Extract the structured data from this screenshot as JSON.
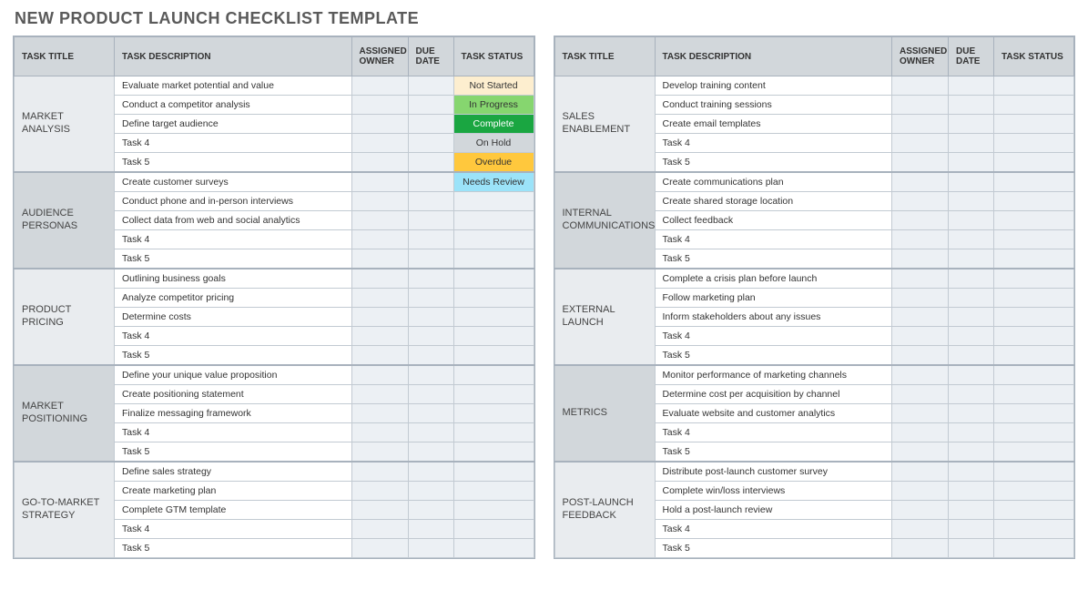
{
  "title": "NEW PRODUCT LAUNCH CHECKLIST TEMPLATE",
  "headers": {
    "task_title": "TASK TITLE",
    "task_description": "TASK DESCRIPTION",
    "assigned_owner": "ASSIGNED OWNER",
    "due_date": "DUE DATE",
    "task_status": "TASK STATUS"
  },
  "status_colors": {
    "Not Started": {
      "bg": "#fdeecf",
      "fg": "#333333"
    },
    "In Progress": {
      "bg": "#86d66f",
      "fg": "#333333"
    },
    "Complete": {
      "bg": "#1aa641",
      "fg": "#ffffff"
    },
    "On Hold": {
      "bg": "#d2d7db",
      "fg": "#333333"
    },
    "Overdue": {
      "bg": "#ffc83d",
      "fg": "#333333"
    },
    "Needs Review": {
      "bg": "#9be3f9",
      "fg": "#333333"
    }
  },
  "left": [
    {
      "category": "MARKET ANALYSIS",
      "rows": [
        {
          "desc": "Evaluate market potential and value",
          "owner": "",
          "due": "",
          "status": "Not Started"
        },
        {
          "desc": "Conduct a competitor analysis",
          "owner": "",
          "due": "",
          "status": "In Progress"
        },
        {
          "desc": "Define target audience",
          "owner": "",
          "due": "",
          "status": "Complete"
        },
        {
          "desc": "Task 4",
          "owner": "",
          "due": "",
          "status": "On Hold"
        },
        {
          "desc": "Task 5",
          "owner": "",
          "due": "",
          "status": "Overdue"
        }
      ]
    },
    {
      "category": "AUDIENCE PERSONAS",
      "rows": [
        {
          "desc": "Create customer surveys",
          "owner": "",
          "due": "",
          "status": "Needs Review"
        },
        {
          "desc": "Conduct phone and in-person interviews",
          "owner": "",
          "due": "",
          "status": ""
        },
        {
          "desc": "Collect data from web and social analytics",
          "owner": "",
          "due": "",
          "status": ""
        },
        {
          "desc": "Task 4",
          "owner": "",
          "due": "",
          "status": ""
        },
        {
          "desc": "Task 5",
          "owner": "",
          "due": "",
          "status": ""
        }
      ]
    },
    {
      "category": "PRODUCT PRICING",
      "rows": [
        {
          "desc": "Outlining business goals",
          "owner": "",
          "due": "",
          "status": ""
        },
        {
          "desc": "Analyze competitor pricing",
          "owner": "",
          "due": "",
          "status": ""
        },
        {
          "desc": "Determine costs",
          "owner": "",
          "due": "",
          "status": ""
        },
        {
          "desc": "Task 4",
          "owner": "",
          "due": "",
          "status": ""
        },
        {
          "desc": "Task 5",
          "owner": "",
          "due": "",
          "status": ""
        }
      ]
    },
    {
      "category": "MARKET POSITIONING",
      "rows": [
        {
          "desc": "Define your unique value proposition",
          "owner": "",
          "due": "",
          "status": ""
        },
        {
          "desc": "Create positioning statement",
          "owner": "",
          "due": "",
          "status": ""
        },
        {
          "desc": "Finalize messaging framework",
          "owner": "",
          "due": "",
          "status": ""
        },
        {
          "desc": "Task 4",
          "owner": "",
          "due": "",
          "status": ""
        },
        {
          "desc": "Task 5",
          "owner": "",
          "due": "",
          "status": ""
        }
      ]
    },
    {
      "category": "GO-TO-MARKET STRATEGY",
      "rows": [
        {
          "desc": "Define sales strategy",
          "owner": "",
          "due": "",
          "status": ""
        },
        {
          "desc": "Create marketing plan",
          "owner": "",
          "due": "",
          "status": ""
        },
        {
          "desc": "Complete GTM template",
          "owner": "",
          "due": "",
          "status": ""
        },
        {
          "desc": "Task 4",
          "owner": "",
          "due": "",
          "status": ""
        },
        {
          "desc": "Task 5",
          "owner": "",
          "due": "",
          "status": ""
        }
      ]
    }
  ],
  "right": [
    {
      "category": "SALES ENABLEMENT",
      "rows": [
        {
          "desc": "Develop training content",
          "owner": "",
          "due": "",
          "status": ""
        },
        {
          "desc": "Conduct training sessions",
          "owner": "",
          "due": "",
          "status": ""
        },
        {
          "desc": "Create email templates",
          "owner": "",
          "due": "",
          "status": ""
        },
        {
          "desc": "Task 4",
          "owner": "",
          "due": "",
          "status": ""
        },
        {
          "desc": "Task 5",
          "owner": "",
          "due": "",
          "status": ""
        }
      ]
    },
    {
      "category": "INTERNAL COMMUNICATIONS",
      "rows": [
        {
          "desc": "Create communications plan",
          "owner": "",
          "due": "",
          "status": ""
        },
        {
          "desc": "Create shared storage location",
          "owner": "",
          "due": "",
          "status": ""
        },
        {
          "desc": "Collect feedback",
          "owner": "",
          "due": "",
          "status": ""
        },
        {
          "desc": "Task 4",
          "owner": "",
          "due": "",
          "status": ""
        },
        {
          "desc": "Task 5",
          "owner": "",
          "due": "",
          "status": ""
        }
      ]
    },
    {
      "category": "EXTERNAL LAUNCH",
      "rows": [
        {
          "desc": "Complete a crisis plan before launch",
          "owner": "",
          "due": "",
          "status": ""
        },
        {
          "desc": "Follow marketing plan",
          "owner": "",
          "due": "",
          "status": ""
        },
        {
          "desc": "Inform stakeholders about any issues",
          "owner": "",
          "due": "",
          "status": ""
        },
        {
          "desc": "Task 4",
          "owner": "",
          "due": "",
          "status": ""
        },
        {
          "desc": "Task 5",
          "owner": "",
          "due": "",
          "status": ""
        }
      ]
    },
    {
      "category": "METRICS",
      "rows": [
        {
          "desc": "Monitor performance of marketing channels",
          "owner": "",
          "due": "",
          "status": ""
        },
        {
          "desc": "Determine cost per acquisition by channel",
          "owner": "",
          "due": "",
          "status": ""
        },
        {
          "desc": "Evaluate website and customer analytics",
          "owner": "",
          "due": "",
          "status": ""
        },
        {
          "desc": "Task 4",
          "owner": "",
          "due": "",
          "status": ""
        },
        {
          "desc": "Task 5",
          "owner": "",
          "due": "",
          "status": ""
        }
      ]
    },
    {
      "category": "POST-LAUNCH FEEDBACK",
      "rows": [
        {
          "desc": "Distribute post-launch customer survey",
          "owner": "",
          "due": "",
          "status": ""
        },
        {
          "desc": "Complete win/loss interviews",
          "owner": "",
          "due": "",
          "status": ""
        },
        {
          "desc": "Hold a post-launch review",
          "owner": "",
          "due": "",
          "status": ""
        },
        {
          "desc": "Task 4",
          "owner": "",
          "due": "",
          "status": ""
        },
        {
          "desc": "Task 5",
          "owner": "",
          "due": "",
          "status": ""
        }
      ]
    }
  ]
}
